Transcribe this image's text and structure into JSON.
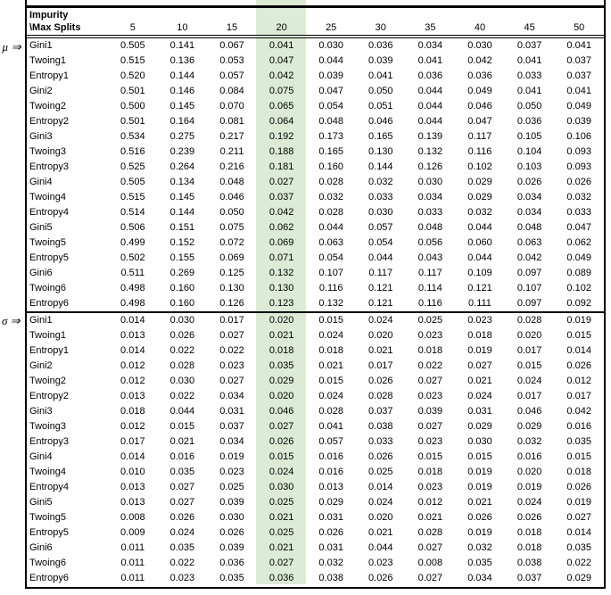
{
  "section_labels": {
    "mu": "µ ⇒",
    "sigma": "σ ⇒"
  },
  "table": {
    "header_line1": "Impurity",
    "header_line2": "\\Max Splits",
    "columns": [
      "5",
      "10",
      "15",
      "20",
      "25",
      "30",
      "35",
      "40",
      "45",
      "50"
    ],
    "highlighted_column": "20",
    "highlight_color": "#dcead6",
    "mu_rows": [
      {
        "label": "Gini1",
        "values": [
          "0.505",
          "0.141",
          "0.067",
          "0.041",
          "0.030",
          "0.036",
          "0.034",
          "0.030",
          "0.037",
          "0.041"
        ]
      },
      {
        "label": "Twoing1",
        "values": [
          "0.515",
          "0.136",
          "0.053",
          "0.047",
          "0.044",
          "0.039",
          "0.041",
          "0.042",
          "0.041",
          "0.037"
        ]
      },
      {
        "label": "Entropy1",
        "values": [
          "0.520",
          "0.144",
          "0.057",
          "0.042",
          "0.039",
          "0.041",
          "0.036",
          "0.036",
          "0.033",
          "0.037"
        ]
      },
      {
        "label": "Gini2",
        "values": [
          "0.501",
          "0.146",
          "0.084",
          "0.075",
          "0.047",
          "0.050",
          "0.044",
          "0.049",
          "0.041",
          "0.041"
        ]
      },
      {
        "label": "Twoing2",
        "values": [
          "0.500",
          "0.145",
          "0.070",
          "0.065",
          "0.054",
          "0.051",
          "0.044",
          "0.046",
          "0.050",
          "0.049"
        ]
      },
      {
        "label": "Entropy2",
        "values": [
          "0.501",
          "0.164",
          "0.081",
          "0.064",
          "0.048",
          "0.046",
          "0.044",
          "0.047",
          "0.036",
          "0.039"
        ]
      },
      {
        "label": "Gini3",
        "values": [
          "0.534",
          "0.275",
          "0.217",
          "0.192",
          "0.173",
          "0.165",
          "0.139",
          "0.117",
          "0.105",
          "0.106"
        ]
      },
      {
        "label": "Twoing3",
        "values": [
          "0.516",
          "0.239",
          "0.211",
          "0.188",
          "0.165",
          "0.130",
          "0.132",
          "0.116",
          "0.104",
          "0.093"
        ]
      },
      {
        "label": "Entropy3",
        "values": [
          "0.525",
          "0.264",
          "0.216",
          "0.181",
          "0.160",
          "0.144",
          "0.126",
          "0.102",
          "0.103",
          "0.093"
        ]
      },
      {
        "label": "Gini4",
        "values": [
          "0.505",
          "0.134",
          "0.048",
          "0.027",
          "0.028",
          "0.032",
          "0.030",
          "0.029",
          "0.026",
          "0.026"
        ]
      },
      {
        "label": "Twoing4",
        "values": [
          "0.515",
          "0.145",
          "0.046",
          "0.037",
          "0.032",
          "0.033",
          "0.034",
          "0.029",
          "0.034",
          "0.032"
        ]
      },
      {
        "label": "Entropy4",
        "values": [
          "0.514",
          "0.144",
          "0.050",
          "0.042",
          "0.028",
          "0.030",
          "0.033",
          "0.032",
          "0.034",
          "0.033"
        ]
      },
      {
        "label": "Gini5",
        "values": [
          "0.506",
          "0.151",
          "0.075",
          "0.062",
          "0.044",
          "0.057",
          "0.048",
          "0.044",
          "0.048",
          "0.047"
        ]
      },
      {
        "label": "Twoing5",
        "values": [
          "0.499",
          "0.152",
          "0.072",
          "0.069",
          "0.063",
          "0.054",
          "0.056",
          "0.060",
          "0.063",
          "0.062"
        ]
      },
      {
        "label": "Entropy5",
        "values": [
          "0.502",
          "0.155",
          "0.069",
          "0.071",
          "0.054",
          "0.044",
          "0.043",
          "0.044",
          "0.042",
          "0.049"
        ]
      },
      {
        "label": "Gini6",
        "values": [
          "0.511",
          "0.269",
          "0.125",
          "0.132",
          "0.107",
          "0.117",
          "0.117",
          "0.109",
          "0.097",
          "0.089"
        ]
      },
      {
        "label": "Twoing6",
        "values": [
          "0.498",
          "0.160",
          "0.130",
          "0.130",
          "0.116",
          "0.121",
          "0.114",
          "0.121",
          "0.107",
          "0.102"
        ]
      },
      {
        "label": "Entropy6",
        "values": [
          "0.498",
          "0.160",
          "0.126",
          "0.123",
          "0.132",
          "0.121",
          "0.116",
          "0.111",
          "0.097",
          "0.092"
        ]
      }
    ],
    "sigma_rows": [
      {
        "label": "Gini1",
        "values": [
          "0.014",
          "0.030",
          "0.017",
          "0.020",
          "0.015",
          "0.024",
          "0.025",
          "0.023",
          "0.028",
          "0.019"
        ]
      },
      {
        "label": "Twoing1",
        "values": [
          "0.013",
          "0.026",
          "0.027",
          "0.021",
          "0.024",
          "0.020",
          "0.023",
          "0.018",
          "0.020",
          "0.015"
        ]
      },
      {
        "label": "Entropy1",
        "values": [
          "0.014",
          "0.022",
          "0.022",
          "0.018",
          "0.018",
          "0.021",
          "0.018",
          "0.019",
          "0.017",
          "0.014"
        ]
      },
      {
        "label": "Gini2",
        "values": [
          "0.012",
          "0.028",
          "0.023",
          "0.035",
          "0.021",
          "0.017",
          "0.022",
          "0.027",
          "0.015",
          "0.026"
        ]
      },
      {
        "label": "Twoing2",
        "values": [
          "0.012",
          "0.030",
          "0.027",
          "0.029",
          "0.015",
          "0.026",
          "0.027",
          "0.021",
          "0.024",
          "0.012"
        ]
      },
      {
        "label": "Entropy2",
        "values": [
          "0.013",
          "0.022",
          "0.034",
          "0.020",
          "0.024",
          "0.028",
          "0.023",
          "0.024",
          "0.017",
          "0.017"
        ]
      },
      {
        "label": "Gini3",
        "values": [
          "0.018",
          "0.044",
          "0.031",
          "0.046",
          "0.028",
          "0.037",
          "0.039",
          "0.031",
          "0.046",
          "0.042"
        ]
      },
      {
        "label": "Twoing3",
        "values": [
          "0.012",
          "0.015",
          "0.037",
          "0.027",
          "0.041",
          "0.038",
          "0.027",
          "0.029",
          "0.029",
          "0.016"
        ]
      },
      {
        "label": "Entropy3",
        "values": [
          "0.017",
          "0.021",
          "0.034",
          "0.026",
          "0.057",
          "0.033",
          "0.023",
          "0.030",
          "0.032",
          "0.035"
        ]
      },
      {
        "label": "Gini4",
        "values": [
          "0.014",
          "0.016",
          "0.019",
          "0.015",
          "0.016",
          "0.026",
          "0.015",
          "0.015",
          "0.016",
          "0.015"
        ]
      },
      {
        "label": "Twoing4",
        "values": [
          "0.010",
          "0.035",
          "0.023",
          "0.024",
          "0.016",
          "0.025",
          "0.018",
          "0.019",
          "0.020",
          "0.018"
        ]
      },
      {
        "label": "Entropy4",
        "values": [
          "0.013",
          "0.027",
          "0.025",
          "0.030",
          "0.013",
          "0.014",
          "0.023",
          "0.019",
          "0.019",
          "0.026"
        ]
      },
      {
        "label": "Gini5",
        "values": [
          "0.013",
          "0.027",
          "0.039",
          "0.025",
          "0.029",
          "0.024",
          "0.012",
          "0.021",
          "0.024",
          "0.019"
        ]
      },
      {
        "label": "Twoing5",
        "values": [
          "0.008",
          "0.026",
          "0.030",
          "0.021",
          "0.031",
          "0.020",
          "0.021",
          "0.026",
          "0.026",
          "0.027"
        ]
      },
      {
        "label": "Entropy5",
        "values": [
          "0.009",
          "0.024",
          "0.026",
          "0.025",
          "0.026",
          "0.021",
          "0.028",
          "0.019",
          "0.018",
          "0.014"
        ]
      },
      {
        "label": "Gini6",
        "values": [
          "0.011",
          "0.035",
          "0.039",
          "0.021",
          "0.031",
          "0.044",
          "0.027",
          "0.032",
          "0.018",
          "0.035"
        ]
      },
      {
        "label": "Twoing6",
        "values": [
          "0.011",
          "0.022",
          "0.036",
          "0.027",
          "0.032",
          "0.023",
          "0.008",
          "0.035",
          "0.038",
          "0.022"
        ]
      },
      {
        "label": "Entropy6",
        "values": [
          "0.011",
          "0.023",
          "0.035",
          "0.036",
          "0.038",
          "0.026",
          "0.027",
          "0.034",
          "0.037",
          "0.029"
        ]
      }
    ]
  }
}
